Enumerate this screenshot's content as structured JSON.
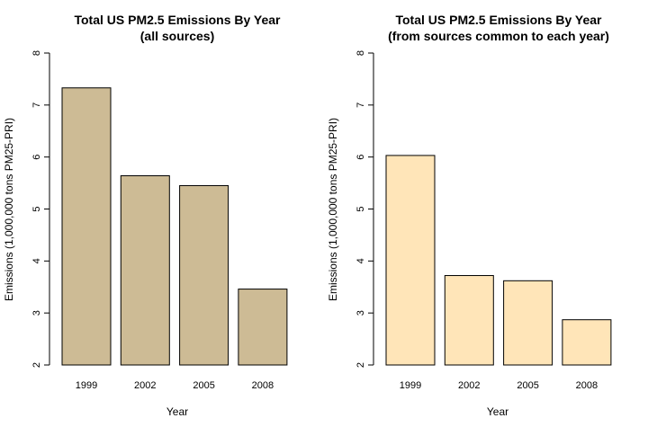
{
  "chart_data": [
    {
      "type": "bar",
      "title": "Total US PM2.5 Emissions By Year",
      "subtitle": "(all sources)",
      "xlabel": "Year",
      "ylabel": "Emissions (1,000,000 tons PM25-PRI)",
      "categories": [
        "1999",
        "2002",
        "2005",
        "2008"
      ],
      "values": [
        7.33,
        5.64,
        5.45,
        3.46
      ],
      "ylim": [
        2,
        8
      ],
      "yticks": [
        2,
        3,
        4,
        5,
        6,
        7,
        8
      ],
      "bar_color": "#CDBB95",
      "grid": false,
      "legend": "none"
    },
    {
      "type": "bar",
      "title": "Total US PM2.5 Emissions By Year",
      "subtitle": "(from sources common to each year)",
      "xlabel": "Year",
      "ylabel": "Emissions (1,000,000 tons PM25-PRI)",
      "categories": [
        "1999",
        "2002",
        "2005",
        "2008"
      ],
      "values": [
        6.03,
        3.72,
        3.62,
        2.87
      ],
      "ylim": [
        2,
        8
      ],
      "yticks": [
        2,
        3,
        4,
        5,
        6,
        7,
        8
      ],
      "bar_color": "#FFE5B8",
      "grid": false,
      "legend": "none"
    }
  ]
}
